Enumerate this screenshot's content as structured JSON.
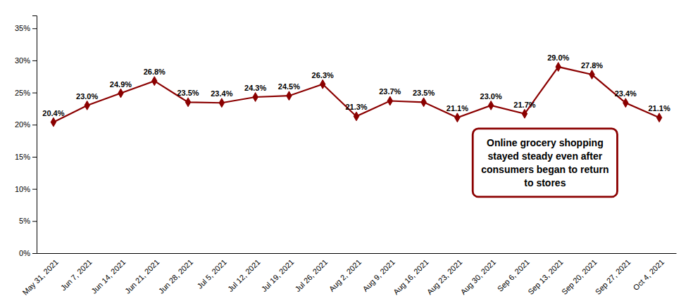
{
  "chart_data": {
    "type": "line",
    "categories": [
      "May 31, 2021",
      "Jun 7, 2021",
      "Jun 14, 2021",
      "Jun 21, 2021",
      "Jun 28, 2021",
      "Jul 5, 2021",
      "Jul 12, 2021",
      "Jul 19, 2021",
      "Jul 26, 2021",
      "Aug 2, 2021",
      "Aug 9, 2021",
      "Aug 16, 2021",
      "Aug 23, 2021",
      "Aug 30, 2021",
      "Sep 6, 2021",
      "Sep 13, 2021",
      "Sep 20, 2021",
      "Sep 27, 2021",
      "Oct 4, 2021"
    ],
    "values": [
      20.4,
      23.0,
      24.9,
      26.8,
      23.5,
      23.4,
      24.3,
      24.5,
      26.3,
      21.3,
      23.7,
      23.5,
      21.1,
      23.0,
      21.7,
      29.0,
      27.8,
      23.4,
      21.1
    ],
    "value_labels": [
      "20.4%",
      "23.0%",
      "24.9%",
      "26.8%",
      "23.5%",
      "23.4%",
      "24.3%",
      "24.5%",
      "26.3%",
      "21.3%",
      "23.7%",
      "23.5%",
      "21.1%",
      "23.0%",
      "21.7%",
      "29.0%",
      "27.8%",
      "23.4%",
      "21.1%"
    ],
    "data_labels": true,
    "color": "#8B0000",
    "marker": "diamond",
    "line_style": "solid",
    "ylim": [
      0,
      37
    ],
    "yticks": [
      {
        "value": 0,
        "label": "0%"
      },
      {
        "value": 5,
        "label": "5%"
      },
      {
        "value": 10,
        "label": "10%"
      },
      {
        "value": 15,
        "label": "15%"
      },
      {
        "value": 20,
        "label": "20%"
      },
      {
        "value": 25,
        "label": "25%"
      },
      {
        "value": 30,
        "label": "30%"
      },
      {
        "value": 35,
        "label": "35%"
      }
    ],
    "grid": false,
    "annotation": "Online grocery shopping\nstayed steady even after\nconsumers began to return\nto stores"
  }
}
